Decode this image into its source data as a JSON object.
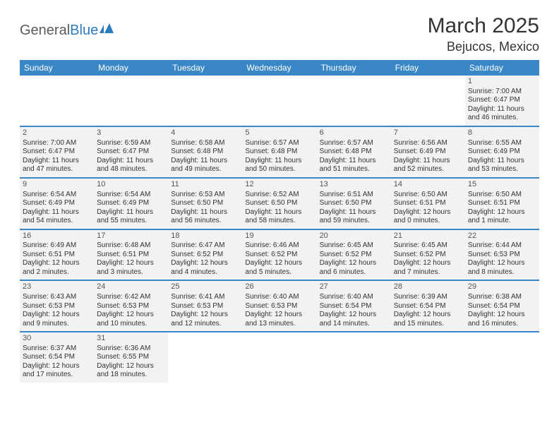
{
  "brand": {
    "part1": "General",
    "part2": "Blue"
  },
  "title": "March 2025",
  "location": "Bejucos, Mexico",
  "colors": {
    "header_bg": "#3a87c8",
    "header_fg": "#ffffff",
    "row_border": "#3a87c8",
    "cell_bg": "#f2f2f2",
    "text": "#333333",
    "brand_gray": "#5a5a5a",
    "brand_blue": "#2b7bbf"
  },
  "dow": [
    "Sunday",
    "Monday",
    "Tuesday",
    "Wednesday",
    "Thursday",
    "Friday",
    "Saturday"
  ],
  "weeks": [
    [
      null,
      null,
      null,
      null,
      null,
      null,
      {
        "n": "1",
        "sr": "7:00 AM",
        "ss": "6:47 PM",
        "dl": "11 hours and 46 minutes."
      }
    ],
    [
      {
        "n": "2",
        "sr": "7:00 AM",
        "ss": "6:47 PM",
        "dl": "11 hours and 47 minutes."
      },
      {
        "n": "3",
        "sr": "6:59 AM",
        "ss": "6:47 PM",
        "dl": "11 hours and 48 minutes."
      },
      {
        "n": "4",
        "sr": "6:58 AM",
        "ss": "6:48 PM",
        "dl": "11 hours and 49 minutes."
      },
      {
        "n": "5",
        "sr": "6:57 AM",
        "ss": "6:48 PM",
        "dl": "11 hours and 50 minutes."
      },
      {
        "n": "6",
        "sr": "6:57 AM",
        "ss": "6:48 PM",
        "dl": "11 hours and 51 minutes."
      },
      {
        "n": "7",
        "sr": "6:56 AM",
        "ss": "6:49 PM",
        "dl": "11 hours and 52 minutes."
      },
      {
        "n": "8",
        "sr": "6:55 AM",
        "ss": "6:49 PM",
        "dl": "11 hours and 53 minutes."
      }
    ],
    [
      {
        "n": "9",
        "sr": "6:54 AM",
        "ss": "6:49 PM",
        "dl": "11 hours and 54 minutes."
      },
      {
        "n": "10",
        "sr": "6:54 AM",
        "ss": "6:49 PM",
        "dl": "11 hours and 55 minutes."
      },
      {
        "n": "11",
        "sr": "6:53 AM",
        "ss": "6:50 PM",
        "dl": "11 hours and 56 minutes."
      },
      {
        "n": "12",
        "sr": "6:52 AM",
        "ss": "6:50 PM",
        "dl": "11 hours and 58 minutes."
      },
      {
        "n": "13",
        "sr": "6:51 AM",
        "ss": "6:50 PM",
        "dl": "11 hours and 59 minutes."
      },
      {
        "n": "14",
        "sr": "6:50 AM",
        "ss": "6:51 PM",
        "dl": "12 hours and 0 minutes."
      },
      {
        "n": "15",
        "sr": "6:50 AM",
        "ss": "6:51 PM",
        "dl": "12 hours and 1 minute."
      }
    ],
    [
      {
        "n": "16",
        "sr": "6:49 AM",
        "ss": "6:51 PM",
        "dl": "12 hours and 2 minutes."
      },
      {
        "n": "17",
        "sr": "6:48 AM",
        "ss": "6:51 PM",
        "dl": "12 hours and 3 minutes."
      },
      {
        "n": "18",
        "sr": "6:47 AM",
        "ss": "6:52 PM",
        "dl": "12 hours and 4 minutes."
      },
      {
        "n": "19",
        "sr": "6:46 AM",
        "ss": "6:52 PM",
        "dl": "12 hours and 5 minutes."
      },
      {
        "n": "20",
        "sr": "6:45 AM",
        "ss": "6:52 PM",
        "dl": "12 hours and 6 minutes."
      },
      {
        "n": "21",
        "sr": "6:45 AM",
        "ss": "6:52 PM",
        "dl": "12 hours and 7 minutes."
      },
      {
        "n": "22",
        "sr": "6:44 AM",
        "ss": "6:53 PM",
        "dl": "12 hours and 8 minutes."
      }
    ],
    [
      {
        "n": "23",
        "sr": "6:43 AM",
        "ss": "6:53 PM",
        "dl": "12 hours and 9 minutes."
      },
      {
        "n": "24",
        "sr": "6:42 AM",
        "ss": "6:53 PM",
        "dl": "12 hours and 10 minutes."
      },
      {
        "n": "25",
        "sr": "6:41 AM",
        "ss": "6:53 PM",
        "dl": "12 hours and 12 minutes."
      },
      {
        "n": "26",
        "sr": "6:40 AM",
        "ss": "6:53 PM",
        "dl": "12 hours and 13 minutes."
      },
      {
        "n": "27",
        "sr": "6:40 AM",
        "ss": "6:54 PM",
        "dl": "12 hours and 14 minutes."
      },
      {
        "n": "28",
        "sr": "6:39 AM",
        "ss": "6:54 PM",
        "dl": "12 hours and 15 minutes."
      },
      {
        "n": "29",
        "sr": "6:38 AM",
        "ss": "6:54 PM",
        "dl": "12 hours and 16 minutes."
      }
    ],
    [
      {
        "n": "30",
        "sr": "6:37 AM",
        "ss": "6:54 PM",
        "dl": "12 hours and 17 minutes."
      },
      {
        "n": "31",
        "sr": "6:36 AM",
        "ss": "6:55 PM",
        "dl": "12 hours and 18 minutes."
      },
      null,
      null,
      null,
      null,
      null
    ]
  ],
  "labels": {
    "sunrise": "Sunrise:",
    "sunset": "Sunset:",
    "daylight": "Daylight:"
  }
}
